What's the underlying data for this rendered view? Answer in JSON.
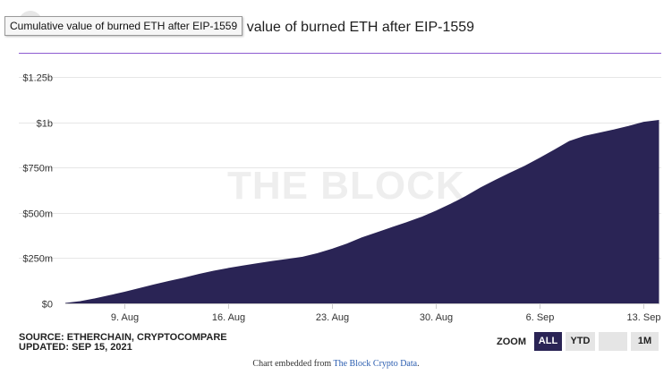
{
  "header": {
    "title_visible": "ulative value of burned ETH after EIP-1559",
    "tooltip": "Cumulative value of burned ETH after EIP-1559"
  },
  "watermark": "THE BLOCK",
  "footer": {
    "source_line": "SOURCE: ETHERCHAIN, CRYPTOCOMPARE",
    "updated_line": "UPDATED: SEP 15, 2021"
  },
  "zoom": {
    "label": "ZOOM",
    "buttons": [
      {
        "label": "ALL",
        "active": true
      },
      {
        "label": "YTD",
        "active": false
      },
      {
        "label": "",
        "active": false
      },
      {
        "label": "1M",
        "active": false
      }
    ]
  },
  "embed": {
    "prefix": "Chart embedded from",
    "link_text": "The Block Crypto Data",
    "suffix": "."
  },
  "colors": {
    "area_fill": "#2a2455",
    "title_rule": "#8e5bd1",
    "grid": "#e6e6e6",
    "active_button": "#2a2455"
  },
  "chart_data": {
    "type": "area",
    "title": "Cumulative value of burned ETH after EIP-1559",
    "xlabel": "",
    "ylabel": "",
    "ylim": [
      0,
      1250000000
    ],
    "xlim": [
      "2021-08-05",
      "2021-09-14"
    ],
    "grid": true,
    "legend": "none",
    "y_ticks": [
      {
        "value": 0,
        "label": "$0"
      },
      {
        "value": 250000000,
        "label": "$250m"
      },
      {
        "value": 500000000,
        "label": "$500m"
      },
      {
        "value": 750000000,
        "label": "$750m"
      },
      {
        "value": 1000000000,
        "label": "$1b"
      },
      {
        "value": 1250000000,
        "label": "$1.25b"
      }
    ],
    "x_ticks": [
      {
        "value": "2021-08-09",
        "label": "9. Aug"
      },
      {
        "value": "2021-08-16",
        "label": "16. Aug"
      },
      {
        "value": "2021-08-23",
        "label": "23. Aug"
      },
      {
        "value": "2021-08-30",
        "label": "30. Aug"
      },
      {
        "value": "2021-09-06",
        "label": "6. Sep"
      },
      {
        "value": "2021-09-13",
        "label": "13. Sep"
      }
    ],
    "series": [
      {
        "x": [
          "2021-08-05",
          "2021-08-06",
          "2021-08-07",
          "2021-08-08",
          "2021-08-09",
          "2021-08-10",
          "2021-08-11",
          "2021-08-12",
          "2021-08-13",
          "2021-08-14",
          "2021-08-15",
          "2021-08-16",
          "2021-08-17",
          "2021-08-18",
          "2021-08-19",
          "2021-08-20",
          "2021-08-21",
          "2021-08-22",
          "2021-08-23",
          "2021-08-24",
          "2021-08-25",
          "2021-08-26",
          "2021-08-27",
          "2021-08-28",
          "2021-08-29",
          "2021-08-30",
          "2021-08-31",
          "2021-09-01",
          "2021-09-02",
          "2021-09-03",
          "2021-09-04",
          "2021-09-05",
          "2021-09-06",
          "2021-09-07",
          "2021-09-08",
          "2021-09-09",
          "2021-09-10",
          "2021-09-11",
          "2021-09-12",
          "2021-09-13",
          "2021-09-14"
        ],
        "y": [
          0,
          10000000,
          25000000,
          43000000,
          62000000,
          82000000,
          103000000,
          122000000,
          140000000,
          160000000,
          178000000,
          193000000,
          207000000,
          220000000,
          232000000,
          243000000,
          255000000,
          275000000,
          300000000,
          328000000,
          362000000,
          390000000,
          418000000,
          445000000,
          475000000,
          510000000,
          548000000,
          590000000,
          638000000,
          680000000,
          720000000,
          758000000,
          802000000,
          848000000,
          895000000,
          922000000,
          940000000,
          958000000,
          978000000,
          1000000000,
          1010000000
        ]
      }
    ]
  }
}
